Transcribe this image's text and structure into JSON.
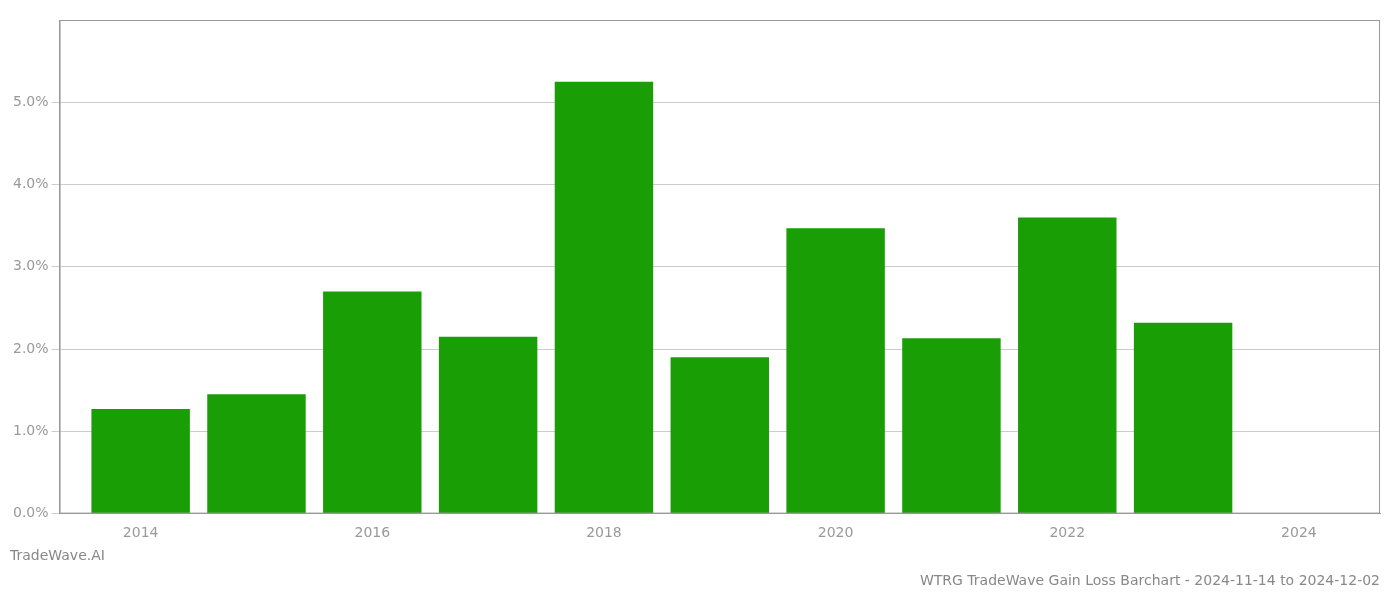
{
  "chart_data": {
    "type": "bar",
    "title": "WTRG TradeWave Gain Loss Barchart - 2024-11-14 to 2024-12-02",
    "subtitle": "TradeWave.AI",
    "x": [
      2014,
      2015,
      2016,
      2017,
      2018,
      2019,
      2020,
      2021,
      2022,
      2023
    ],
    "values": [
      0.0127,
      0.0145,
      0.027,
      0.0215,
      0.0525,
      0.019,
      0.0347,
      0.0213,
      0.036,
      0.0232
    ],
    "color": "#1a9e06",
    "xlim": [
      2013.3,
      2024.7
    ],
    "xticks": [
      2014,
      2016,
      2018,
      2020,
      2022,
      2024
    ],
    "ylim": [
      0,
      0.06
    ],
    "yticks": [
      {
        "value": 0.0,
        "label": "0.0%"
      },
      {
        "value": 0.01,
        "label": "1.0%"
      },
      {
        "value": 0.02,
        "label": "2.0%"
      },
      {
        "value": 0.03,
        "label": "3.0%"
      },
      {
        "value": 0.04,
        "label": "4.0%"
      },
      {
        "value": 0.05,
        "label": "5.0%"
      }
    ],
    "grid": true
  }
}
